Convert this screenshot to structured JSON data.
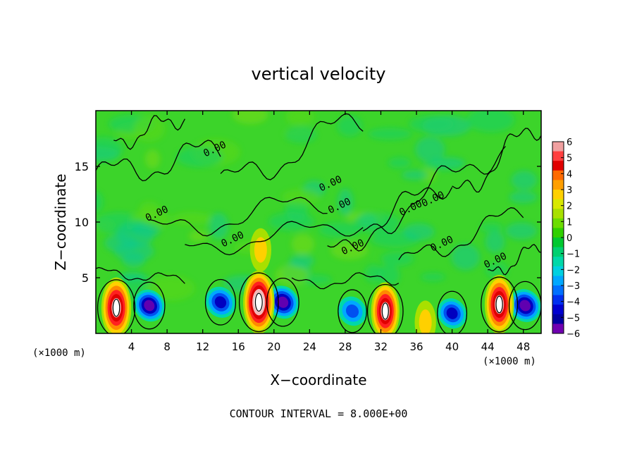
{
  "chart_data": {
    "type": "heatmap",
    "title": "vertical velocity",
    "xlabel": "X−coordinate",
    "ylabel": "Z−coordinate",
    "x_unit_left": "(×1000 m)",
    "x_unit_right": "(×1000 m)",
    "footer": "CONTOUR INTERVAL = 8.000E+00",
    "xlim": [
      0,
      50
    ],
    "ylim": [
      0,
      20
    ],
    "x_ticks": [
      "4",
      "8",
      "12",
      "16",
      "20",
      "24",
      "28",
      "32",
      "36",
      "40",
      "44",
      "48"
    ],
    "y_ticks": [
      "5",
      "10",
      "15"
    ],
    "contour_labels": [
      "0.00",
      "0.00",
      "0.00",
      "0.00",
      "0.00",
      "0.00",
      "0.00",
      "0.00",
      "0.00",
      "0.00"
    ],
    "colorbar": {
      "range": [
        -6,
        6
      ],
      "tick_labels": [
        "6",
        "5",
        "4",
        "3",
        "2",
        "1",
        "0",
        "−1",
        "−2",
        "−3",
        "−4",
        "−5",
        "−6"
      ],
      "colors": [
        "#f0a0a0",
        "#ff4040",
        "#e00000",
        "#ff6a00",
        "#ff9f00",
        "#ffd000",
        "#d8e800",
        "#a8e000",
        "#6cdc00",
        "#30d000",
        "#00c830",
        "#00d070",
        "#00d8a8",
        "#00d0e0",
        "#00a8ff",
        "#0070ff",
        "#0030f0",
        "#0000d0",
        "#0000a0",
        "#7000b0"
      ]
    },
    "updrafts": [
      {
        "x": 2.3,
        "z": 2.3,
        "w": 9.0
      },
      {
        "x": 18.3,
        "z": 2.8,
        "w": 10.0
      },
      {
        "x": 32.5,
        "z": 2.0,
        "w": 8.0
      },
      {
        "x": 45.3,
        "z": 2.6,
        "w": 8.5
      },
      {
        "x": 37.0,
        "z": 1.0,
        "w": 3.0
      },
      {
        "x": 18.5,
        "z": 7.5,
        "w": 3.0
      }
    ],
    "downdrafts": [
      {
        "x": 6.0,
        "z": 2.5,
        "w": -5.5
      },
      {
        "x": 14.0,
        "z": 2.8,
        "w": -5.0
      },
      {
        "x": 21.0,
        "z": 2.8,
        "w": -6.0
      },
      {
        "x": 28.8,
        "z": 2.0,
        "w": -4.0
      },
      {
        "x": 40.0,
        "z": 1.8,
        "w": -4.5
      },
      {
        "x": 48.2,
        "z": 2.5,
        "w": -6.0
      }
    ]
  }
}
